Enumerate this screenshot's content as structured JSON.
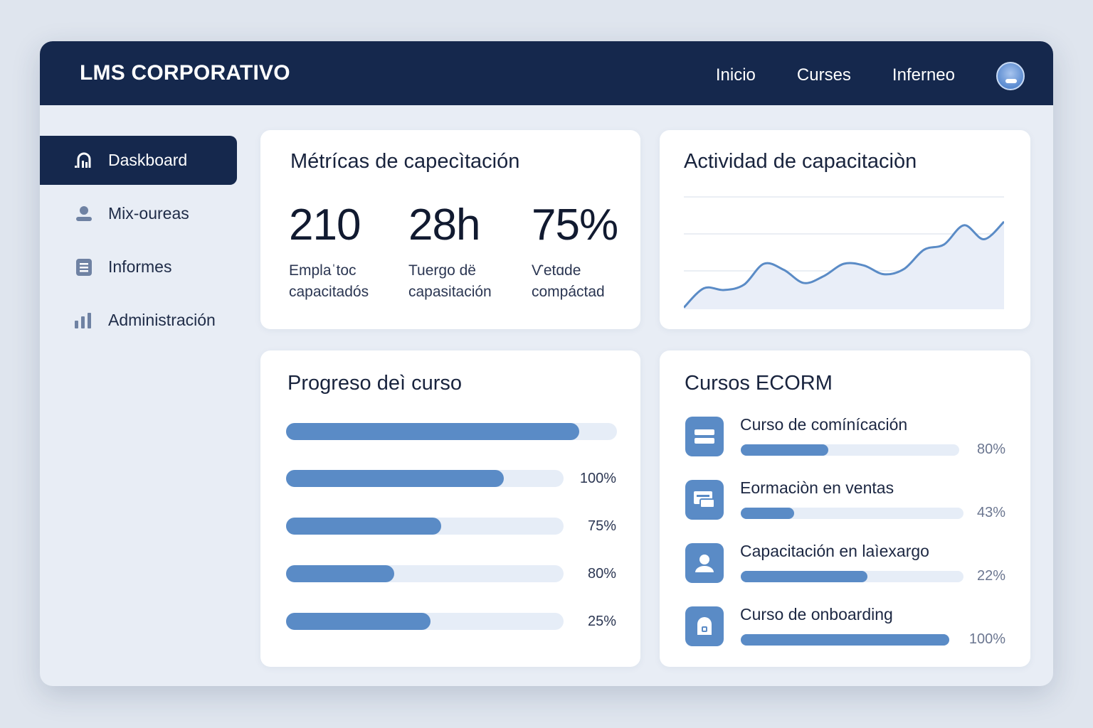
{
  "header": {
    "brand": "LMS CORPORATIVO",
    "nav": [
      "Inicio",
      "Curses",
      "Inferneo"
    ]
  },
  "sidebar": {
    "items": [
      {
        "label": "Daskboard",
        "icon": "dashboard-icon",
        "active": true
      },
      {
        "label": "Mix-oureas",
        "icon": "user-icon",
        "active": false
      },
      {
        "label": "Informes",
        "icon": "document-icon",
        "active": false
      },
      {
        "label": "Administración",
        "icon": "bar-chart-icon",
        "active": false
      }
    ]
  },
  "metrics": {
    "title": "Métrícas de capecìtación",
    "items": [
      {
        "value": "210",
        "label_line1": "Emplaˈtoc",
        "label_line2": "capacitadós"
      },
      {
        "value": "28h",
        "label_line1": "Tuergo dë",
        "label_line2": "capasitación"
      },
      {
        "value": "75%",
        "label_line1": "Ѵetɑde",
        "label_line2": "compáctad"
      }
    ]
  },
  "activity": {
    "title": "Actividad de capacitaciòn"
  },
  "chart_data": {
    "type": "area",
    "title": "Actividad de capacitaciòn",
    "x": [
      0,
      1,
      2,
      3,
      4,
      5,
      6,
      7,
      8,
      9,
      10,
      11,
      12,
      13,
      14,
      15,
      16
    ],
    "values": [
      2,
      24,
      22,
      28,
      52,
      45,
      30,
      38,
      52,
      50,
      40,
      46,
      68,
      74,
      96,
      80,
      100
    ],
    "ylim": [
      0,
      130
    ],
    "grid": true,
    "xlabel": "",
    "ylabel": ""
  },
  "progress": {
    "title": "Progreso deì curso",
    "bars": [
      {
        "pct_label": "",
        "fill": 0.885
      },
      {
        "pct_label": "100%",
        "fill": 0.785
      },
      {
        "pct_label": "75%",
        "fill": 0.56
      },
      {
        "pct_label": "80%",
        "fill": 0.39
      },
      {
        "pct_label": "25%",
        "fill": 0.52
      }
    ]
  },
  "scorm": {
    "title": "Cursos ECORM",
    "courses": [
      {
        "name": "Curso de comínícación",
        "pct_label": "80%",
        "fill": 0.4,
        "icon": "book-icon"
      },
      {
        "name": "Eormaciòn en ventas",
        "pct_label": "43%",
        "fill": 0.24,
        "icon": "cards-icon"
      },
      {
        "name": "Capacitación en laìexargo",
        "pct_label": "22%",
        "fill": 0.57,
        "icon": "person-icon"
      },
      {
        "name": "Curso de onboarding",
        "pct_label": "100%",
        "fill": 1.0,
        "icon": "lock-icon"
      }
    ]
  },
  "colors": {
    "header_bg": "#15284d",
    "accent": "#5a8bc6",
    "track": "#e6edf7",
    "page_bg": "#e8edf5"
  }
}
